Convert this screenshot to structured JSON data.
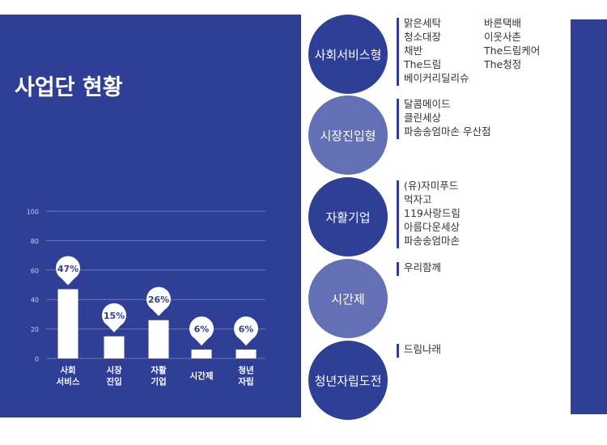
{
  "page_title": "사업단 현황",
  "colors": {
    "navy": "#2f3f96",
    "circle_light": "#6370b5",
    "bar": "#ffffff"
  },
  "chart_data": {
    "type": "bar",
    "categories": [
      "사회\n서비스",
      "시장\n진입",
      "자활\n기업",
      "시간제",
      "청년\n자립"
    ],
    "values": [
      47,
      15,
      26,
      6,
      6
    ],
    "labels": [
      "47%",
      "15%",
      "26%",
      "6%",
      "6%"
    ],
    "ylim": [
      0,
      100
    ],
    "yticks": [
      0,
      20,
      40,
      60,
      80,
      100
    ],
    "grid": true,
    "xlabel": "",
    "ylabel": ""
  },
  "categories": [
    {
      "name": "사회서비스형",
      "style": "dark",
      "col1": [
        "맑은세탁",
        "청소대장",
        "채반",
        "The드림",
        "베이커리딜리슈"
      ],
      "col2": [
        "바른택배",
        "이웃사촌",
        "The드림케어",
        "The청정"
      ]
    },
    {
      "name": "시장진입형",
      "style": "light",
      "col1": [
        "달콤메이드",
        "클린세상",
        "파송송엄마손 우산점"
      ],
      "col2": []
    },
    {
      "name": "자활기업",
      "style": "dark",
      "col1": [
        "(유)자미푸드",
        "먹자고",
        "119사랑드림",
        "아름다운세상",
        "파송송엄마손"
      ],
      "col2": []
    },
    {
      "name": "시간제",
      "style": "light",
      "col1": [
        "우리함께"
      ],
      "col2": []
    },
    {
      "name": "청년자립도전",
      "style": "dark",
      "col1": [
        "드림나래"
      ],
      "col2": []
    }
  ]
}
